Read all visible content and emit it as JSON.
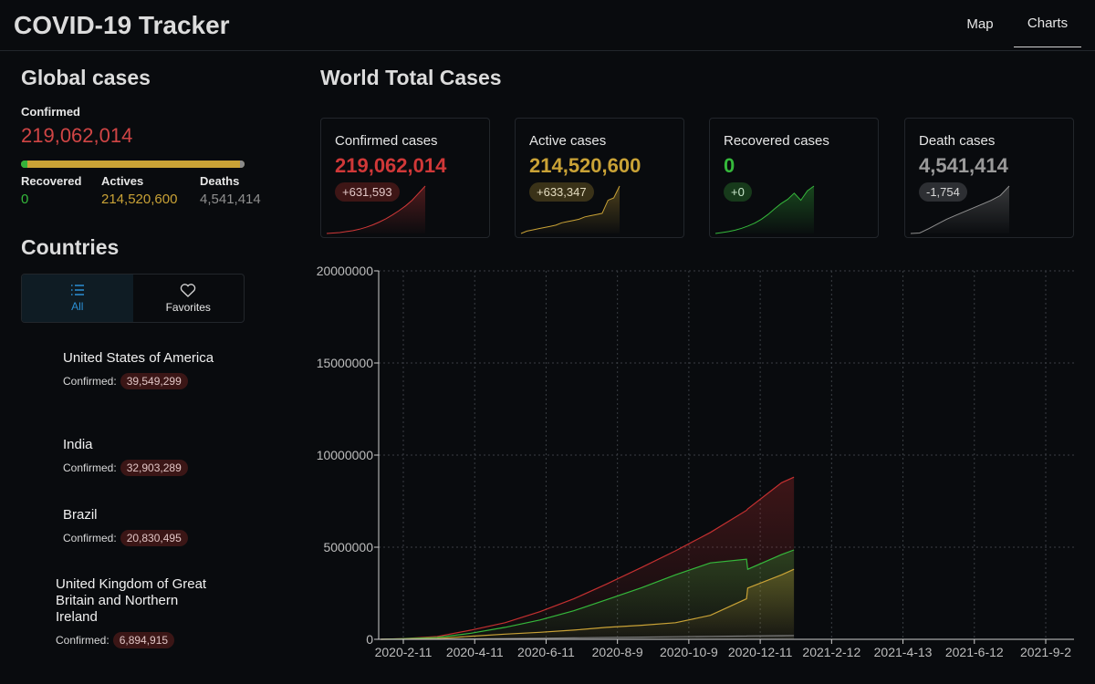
{
  "header": {
    "title": "COVID-19 Tracker",
    "nav": [
      {
        "label": "Map",
        "active": false
      },
      {
        "label": "Charts",
        "active": true
      }
    ]
  },
  "sidebar": {
    "global_title": "Global cases",
    "confirmed_label": "Confirmed",
    "confirmed_value": "219,062,014",
    "stats": [
      {
        "label": "Recovered",
        "value": "0",
        "color": "#35b83b"
      },
      {
        "label": "Actives",
        "value": "214,520,600",
        "color": "#c9a236"
      },
      {
        "label": "Deaths",
        "value": "4,541,414",
        "color": "#8f8f8f"
      }
    ],
    "countries_title": "Countries",
    "segments": [
      {
        "label": "All",
        "icon": "list-icon",
        "active": true
      },
      {
        "label": "Favorites",
        "icon": "heart-icon",
        "active": false
      }
    ],
    "countries": [
      {
        "name": "United States of America",
        "confirmed_label": "Confirmed:",
        "confirmed": "39,549,299"
      },
      {
        "name": "India",
        "confirmed_label": "Confirmed:",
        "confirmed": "32,903,289"
      },
      {
        "name": "Brazil",
        "confirmed_label": "Confirmed:",
        "confirmed": "20,830,495"
      },
      {
        "name": "United Kingdom of Great Britain and Northern Ireland",
        "confirmed_label": "Confirmed:",
        "confirmed": "6,894,915"
      }
    ]
  },
  "main": {
    "title": "World Total Cases",
    "cards": [
      {
        "title": "Confirmed cases",
        "value": "219,062,014",
        "delta": "+631,593",
        "color": "#d03838",
        "badge_bg": "#3e1616",
        "badge_fg": "#e2c7c7"
      },
      {
        "title": "Active cases",
        "value": "214,520,600",
        "delta": "+633,347",
        "color": "#c9a236",
        "badge_bg": "#3a3218",
        "badge_fg": "#e4dcc0"
      },
      {
        "title": "Recovered cases",
        "value": "0",
        "delta": "+0",
        "color": "#35b83b",
        "badge_bg": "#173a1b",
        "badge_fg": "#c8e6ca"
      },
      {
        "title": "Death cases",
        "value": "4,541,414",
        "delta": "-1,754",
        "color": "#8f8f8f",
        "badge_bg": "#2d2f33",
        "badge_fg": "#d8d8d8"
      }
    ]
  },
  "chart_data": {
    "type": "area",
    "title": "",
    "xlabel": "",
    "ylabel": "",
    "x_ticks": [
      "2020-2-11",
      "2020-4-11",
      "2020-6-11",
      "2020-8-9",
      "2020-10-9",
      "2020-12-11",
      "2021-2-12",
      "2021-4-13",
      "2021-6-12",
      "2021-9-2"
    ],
    "y_ticks": [
      "0",
      "5000000",
      "10000000",
      "15000000",
      "20000000"
    ],
    "ylim": [
      0,
      20000000
    ],
    "grid": true,
    "x": [
      "2020-1-22",
      "2020-2-11",
      "2020-3-12",
      "2020-4-11",
      "2020-5-11",
      "2020-6-11",
      "2020-7-11",
      "2020-8-9",
      "2020-9-9",
      "2020-10-9",
      "2020-11-9",
      "2020-12-11",
      "2020-12-12",
      "2021-1-11",
      "2021-1-22"
    ],
    "series": [
      {
        "key": "confirmed",
        "color": "#c43030",
        "values": [
          0,
          40000,
          150000,
          500000,
          900000,
          1500000,
          2200000,
          3000000,
          3900000,
          4800000,
          5800000,
          7000000,
          7080000,
          8500000,
          8800000
        ]
      },
      {
        "key": "recovered",
        "color": "#35b83b",
        "values": [
          0,
          30000,
          100000,
          330000,
          650000,
          1050000,
          1550000,
          2150000,
          2800000,
          3500000,
          4150000,
          4350000,
          3800000,
          4600000,
          4850000
        ]
      },
      {
        "key": "active",
        "color": "#c9a236",
        "values": [
          0,
          10000,
          40000,
          170000,
          280000,
          380000,
          500000,
          650000,
          760000,
          900000,
          1300000,
          2200000,
          2780000,
          3500000,
          3800000
        ]
      },
      {
        "key": "deaths",
        "color": "#7a7a7a",
        "values": [
          0,
          1000,
          5000,
          20000,
          40000,
          60000,
          80000,
          100000,
          120000,
          140000,
          160000,
          180000,
          185000,
          200000,
          210000
        ]
      }
    ],
    "mini_series": {
      "confirmed": [
        0,
        1,
        2,
        4,
        6,
        9,
        13,
        18,
        24,
        31,
        39,
        48,
        58,
        70,
        85,
        100
      ],
      "active": [
        0,
        2,
        3,
        4,
        5,
        6,
        7,
        9,
        10,
        11,
        12,
        14,
        15,
        16,
        17,
        28,
        30,
        40
      ],
      "recovered": [
        0,
        2,
        4,
        7,
        11,
        16,
        22,
        30,
        40,
        52,
        63,
        72,
        85,
        70,
        90,
        100
      ],
      "deaths": [
        0,
        1,
        10,
        20,
        30,
        38,
        46,
        54,
        62,
        70,
        80,
        100
      ]
    }
  }
}
